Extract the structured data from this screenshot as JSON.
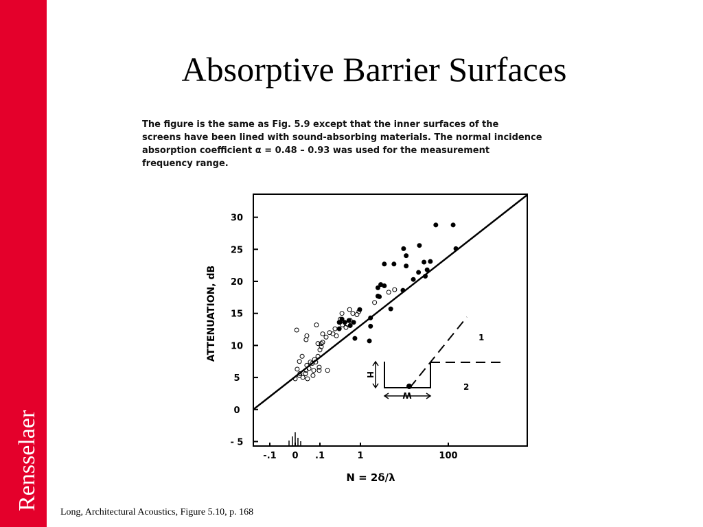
{
  "slide": {
    "title": "Absorptive Barrier Surfaces",
    "sidebar": "Rensselaer",
    "caption": [
      "The figure is the same as Fig. 5.9 except that the inner surfaces of the",
      "screens have been lined with sound-absorbing materials.  The normal incidence",
      "absorption coefficient α =  0.48 – 0.93 was used for the measurement",
      "frequency range."
    ],
    "footer": "Long, Architectural Acoustics, Figure 5.10, p. 168"
  },
  "chart_data": {
    "type": "scatter",
    "ylabel": "ATTENUATION, dB",
    "xlabel": "N = 2δ/λ",
    "xlim": [
      -0.165,
      6300
    ],
    "ylim": [
      -5.7,
      33.6
    ],
    "xticks": [
      {
        "value": -0.1,
        "label": "-.1"
      },
      0,
      {
        "value": 0.1,
        "label": ".1"
      },
      1,
      100
    ],
    "yticks": [
      {
        "value": -5,
        "label": "- 5"
      },
      0,
      5,
      10,
      15,
      20,
      25,
      30
    ],
    "annotations": [
      "1",
      "2",
      "H",
      "W"
    ],
    "series": [
      {
        "type": "scatter",
        "marker": "open",
        "color": "#000",
        "x": [
          0.006,
          0.047,
          0.044,
          0.086,
          0.117,
          0.142,
          0.173,
          0.21,
          0.255,
          0.35,
          0.3,
          0.236,
          0.108,
          0.117,
          0.1,
          0.092,
          0.078,
          0.061,
          0.047,
          0.028,
          0.017,
          0.008,
          0.019,
          0.031,
          0,
          0.017,
          0.044,
          0.056,
          0.069,
          0.083,
          0.097,
          0.097,
          0.075,
          0.042,
          0.05,
          0.072,
          0.154,
          0.54,
          0.65,
          0.82,
          0.92,
          0.36,
          0.44,
          0.48,
          2.1,
          4.4,
          6.0,
          0.092,
          0.108,
          0.32,
          0.56
        ],
        "y": [
          12.4,
          11.5,
          10.9,
          13.2,
          11.8,
          11.3,
          12.0,
          11.8,
          11.5,
          15.0,
          13.6,
          12.6,
          9.8,
          10.5,
          9.3,
          8.3,
          7.8,
          7.4,
          6.9,
          8.3,
          7.5,
          6.3,
          5.6,
          5.0,
          4.8,
          5.3,
          6.1,
          6.4,
          7.2,
          7.4,
          6.6,
          6.1,
          6.1,
          5.6,
          4.8,
          5.3,
          6.1,
          15.6,
          15.0,
          14.8,
          15.3,
          13.2,
          12.8,
          13.3,
          16.7,
          18.3,
          18.7,
          10.3,
          10.3,
          14.1,
          13.9
        ]
      },
      {
        "type": "scatter",
        "marker": "filled",
        "color": "#000",
        "x": [
          52,
          129,
          149,
          9.6,
          22,
          11,
          11,
          5.8,
          3.5,
          28,
          39,
          33,
          21,
          16,
          30,
          2.9,
          2.5,
          3.5,
          9.3,
          2.7,
          2.5,
          4.9,
          0.96,
          1.7,
          1.7,
          1.6,
          0.73,
          0.68,
          0.56,
          0.31,
          0.41,
          0.35,
          0.3,
          0.52
        ],
        "y": [
          28.8,
          28.8,
          25.1,
          25.1,
          25.6,
          24.0,
          22.4,
          22.7,
          22.7,
          23.0,
          23.1,
          21.8,
          21.4,
          20.3,
          20.8,
          19.5,
          19.0,
          19.3,
          18.6,
          17.6,
          17.7,
          15.7,
          15.6,
          14.3,
          13.0,
          10.7,
          11.1,
          13.6,
          13.1,
          13.6,
          13.6,
          14.1,
          12.6,
          13.9
        ]
      },
      {
        "type": "line",
        "color": "#000",
        "x": [
          -0.165,
          6300
        ],
        "y": [
          0,
          33.5
        ]
      }
    ]
  }
}
